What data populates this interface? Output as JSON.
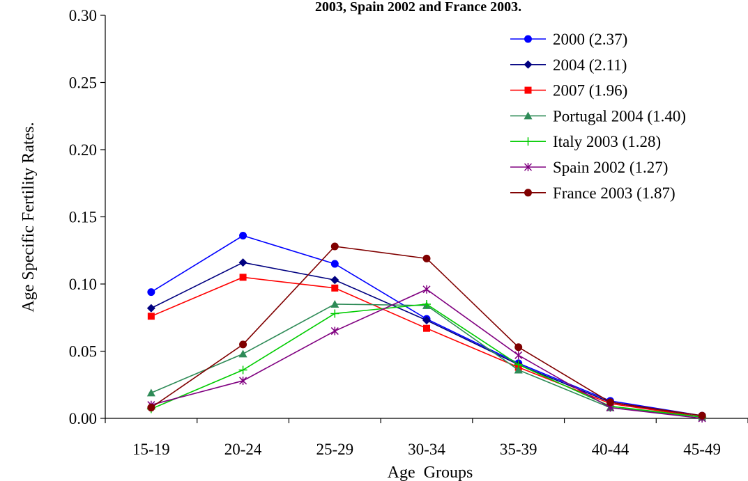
{
  "chart_data": {
    "type": "line",
    "title": "2003, Spain 2002 and France 2003.",
    "xlabel": "Age  Groups",
    "ylabel": "Age Specific Fertility Rates.",
    "categories": [
      "15-19",
      "20-24",
      "25-29",
      "30-34",
      "35-39",
      "40-44",
      "45-49"
    ],
    "ylim": [
      0,
      0.3
    ],
    "yticks": [
      "0.00",
      "0.05",
      "0.10",
      "0.15",
      "0.20",
      "0.25",
      "0.30"
    ],
    "ytick_values": [
      0,
      0.05,
      0.1,
      0.15,
      0.2,
      0.25,
      0.3
    ],
    "grid": false,
    "legend_position": "top-right",
    "series": [
      {
        "name": "2000 (2.37)",
        "color": "#0000FF",
        "marker": "circle",
        "values": [
          0.094,
          0.136,
          0.115,
          0.074,
          0.041,
          0.013,
          0.002
        ]
      },
      {
        "name": "2004 (2.11)",
        "color": "#000080",
        "marker": "diamond",
        "values": [
          0.082,
          0.116,
          0.103,
          0.073,
          0.04,
          0.012,
          0.001
        ]
      },
      {
        "name": "2007 (1.96)",
        "color": "#FF0000",
        "marker": "square",
        "values": [
          0.076,
          0.105,
          0.097,
          0.067,
          0.038,
          0.011,
          0.001
        ]
      },
      {
        "name": "Portugal 2004 (1.40)",
        "color": "#2E8B57",
        "marker": "triangle",
        "values": [
          0.019,
          0.048,
          0.085,
          0.084,
          0.036,
          0.008,
          0.001
        ]
      },
      {
        "name": "Italy 2003 (1.28)",
        "color": "#00CC00",
        "marker": "plus",
        "values": [
          0.007,
          0.036,
          0.078,
          0.085,
          0.04,
          0.009,
          0.001
        ]
      },
      {
        "name": "Spain 2002 (1.27)",
        "color": "#800080",
        "marker": "star",
        "values": [
          0.01,
          0.028,
          0.065,
          0.096,
          0.047,
          0.008,
          0.0
        ]
      },
      {
        "name": "France 2003 (1.87)",
        "color": "#800000",
        "marker": "circle",
        "values": [
          0.008,
          0.055,
          0.128,
          0.119,
          0.053,
          0.012,
          0.002
        ]
      }
    ]
  }
}
